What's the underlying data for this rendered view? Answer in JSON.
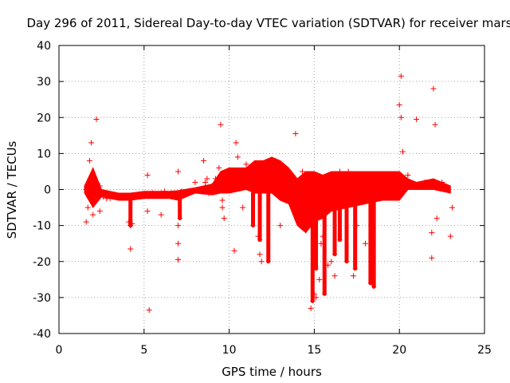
{
  "chart_data": {
    "type": "scatter",
    "title": "Day 296 of 2011, Sidereal Day-to-day VTEC variation (SDTVAR) for receiver mars",
    "xlabel": "GPS time / hours",
    "ylabel": "SDTVAR / TECUs",
    "xlim": [
      0,
      25
    ],
    "ylim": [
      -40,
      40
    ],
    "xticks": [
      0,
      5,
      10,
      15,
      20,
      25
    ],
    "yticks": [
      -40,
      -30,
      -20,
      -10,
      0,
      10,
      20,
      30,
      40
    ],
    "grid": true,
    "marker": "+",
    "color": "#ff0000",
    "series": [
      {
        "name": "SDTVAR",
        "x": [
          1.6,
          1.6,
          1.7,
          1.8,
          1.9,
          2.0,
          2.1,
          2.2,
          2.4,
          2.4,
          2.4,
          2.5,
          2.6,
          2.8,
          3.0,
          3.5,
          4.0,
          4.2,
          4.2,
          4.1,
          4.3,
          4.6,
          5.0,
          5.2,
          5.3,
          5.2,
          5.5,
          6.0,
          6.2,
          6.0,
          6.6,
          7.0,
          7.0,
          7.0,
          7.0,
          7.2,
          7.5,
          8.0,
          8.5,
          8.6,
          8.7,
          8.8,
          9.0,
          9.2,
          9.4,
          9.5,
          9.6,
          9.7,
          9.6,
          9.8,
          10.0,
          10.3,
          10.4,
          10.5,
          10.5,
          10.8,
          11.0,
          11.4,
          11.7,
          11.8,
          11.9,
          12.0,
          12.5,
          13.0,
          13.5,
          13.9,
          14.1,
          14.3,
          14.5,
          14.8,
          15.0,
          15.1,
          15.3,
          15.4,
          15.5,
          15.8,
          16.0,
          16.2,
          16.5,
          17.0,
          17.3,
          17.5,
          18.0,
          18.4,
          18.4,
          19.0,
          20.0,
          20.1,
          20.1,
          20.2,
          20.5,
          21.0,
          21.5,
          21.9,
          21.9,
          22.0,
          22.1,
          22.2,
          22.5,
          23.0,
          23.1
        ],
        "y": [
          0,
          -9,
          -5,
          8,
          13,
          -7,
          2,
          19.5,
          -6,
          1,
          -2,
          -1.5,
          -2,
          -2.5,
          -2.5,
          -2.2,
          -2,
          -10,
          -16.5,
          -9,
          -9.5,
          -2,
          -1.5,
          4,
          -33.5,
          -6,
          -1,
          -1,
          -0.5,
          -7,
          -1,
          -19.5,
          -15,
          -10,
          5,
          -0.5,
          -1,
          2,
          8,
          2,
          3,
          -1,
          1,
          3,
          6,
          18,
          -5,
          -8,
          -3,
          0,
          3,
          -17,
          13,
          9,
          5,
          -5,
          7,
          6,
          -13,
          -18,
          -20,
          5,
          5,
          -10,
          1,
          15.5,
          -5,
          5,
          -9,
          -33,
          -29,
          -30,
          -25,
          -15,
          -13,
          -21,
          -20,
          -24,
          5,
          5,
          -24,
          -10,
          -15,
          -25,
          -26,
          3,
          23.5,
          31.5,
          20,
          10.5,
          4,
          19.5,
          2,
          -19,
          -12,
          28,
          18,
          -8,
          2,
          -13,
          -5
        ]
      }
    ],
    "bands": [
      {
        "x": [
          1.5,
          2.0,
          2.5,
          3.5,
          4.2,
          5.0,
          6.5,
          7.0,
          8.0,
          9.0,
          9.5,
          10.0,
          11.0,
          11.5,
          12.0,
          12.5,
          13.0,
          13.5,
          14.0,
          14.5,
          15.0,
          15.5,
          16.0,
          17.0,
          18.0,
          19.0,
          20.0,
          20.5,
          21.0,
          22.0,
          22.5,
          23.0
        ],
        "upper": [
          1,
          6,
          0,
          -1,
          -1,
          -0.5,
          -0.5,
          -0.3,
          0.5,
          1.5,
          5,
          6,
          6,
          8,
          8,
          9,
          8,
          6,
          3,
          5,
          5,
          4,
          5,
          5,
          5,
          5,
          5,
          3,
          2,
          3,
          2,
          1
        ],
        "lower": [
          -1,
          -5,
          -2,
          -3,
          -3,
          -2.5,
          -2.5,
          -3,
          -1,
          -1.5,
          -1,
          -1,
          0,
          -1,
          -1,
          -1,
          -3,
          -4,
          -10,
          -12,
          -9,
          -8,
          -6,
          -5,
          -4,
          -3,
          -3,
          0,
          0,
          0,
          -0.5,
          -1
        ]
      }
    ],
    "dips": [
      {
        "x": 4.2,
        "top": -2,
        "bottom": -10
      },
      {
        "x": 7.1,
        "top": -1,
        "bottom": -8
      },
      {
        "x": 11.4,
        "top": -1,
        "bottom": -10
      },
      {
        "x": 11.8,
        "top": 0,
        "bottom": -14
      },
      {
        "x": 12.3,
        "top": 1,
        "bottom": -20
      },
      {
        "x": 14.9,
        "top": -4,
        "bottom": -31
      },
      {
        "x": 15.1,
        "top": -4,
        "bottom": -22
      },
      {
        "x": 15.6,
        "top": -4,
        "bottom": -29
      },
      {
        "x": 16.2,
        "top": -4,
        "bottom": -18
      },
      {
        "x": 16.5,
        "top": -3,
        "bottom": -14
      },
      {
        "x": 16.9,
        "top": -3,
        "bottom": -20
      },
      {
        "x": 17.4,
        "top": -2,
        "bottom": -22
      },
      {
        "x": 18.3,
        "top": -2,
        "bottom": -26
      },
      {
        "x": 18.5,
        "top": -2,
        "bottom": -27
      }
    ]
  }
}
